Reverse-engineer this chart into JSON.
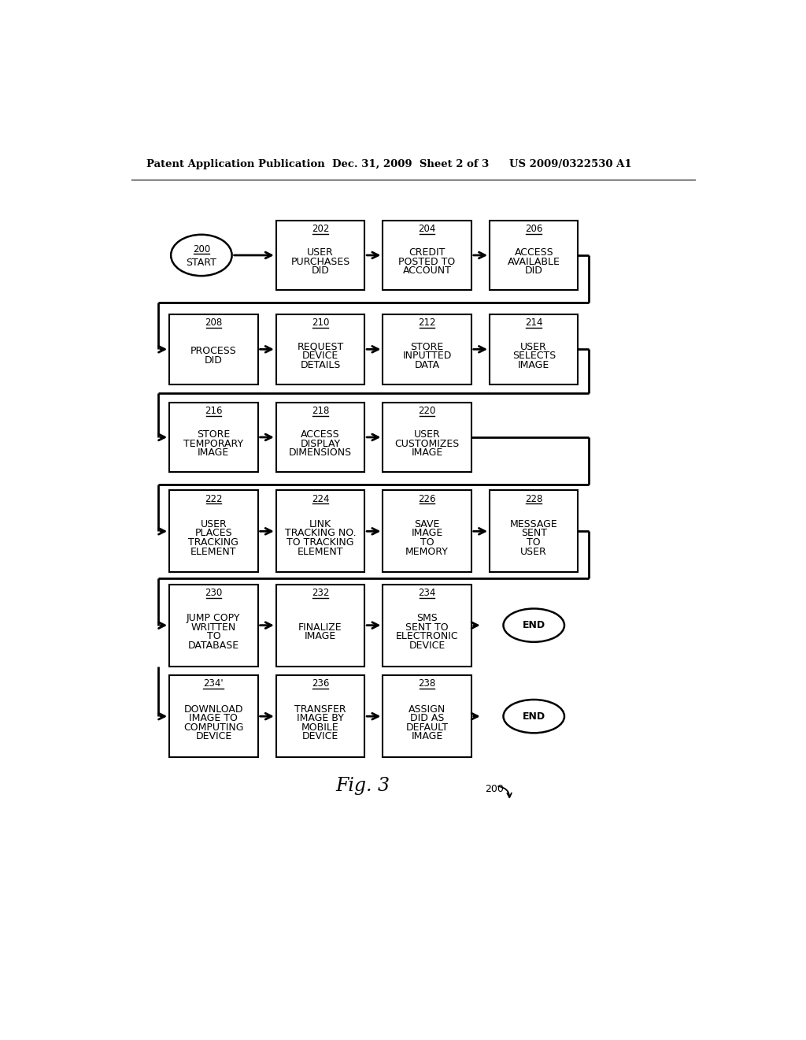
{
  "bg_color": "#ffffff",
  "header_left": "Patent Application Publication",
  "header_center": "Dec. 31, 2009  Sheet 2 of 3",
  "header_right": "US 2009/0322530 A1",
  "fig_label": "Fig. 3",
  "fig_note": "200",
  "nodes": {
    "200": {
      "label": "200\nSTART",
      "type": "oval"
    },
    "202": {
      "label": "202\nUSER\nPURCHASES\nDID",
      "type": "rect"
    },
    "204": {
      "label": "204\nCREDIT\nPOSTED TO\nACCOUNT",
      "type": "rect"
    },
    "206": {
      "label": "206\nACCESS\nAVAILABLE\nDID",
      "type": "rect"
    },
    "208": {
      "label": "208\nPROCESS\nDID",
      "type": "rect"
    },
    "210": {
      "label": "210\nREQUEST\nDEVICE\nDETAILS",
      "type": "rect"
    },
    "212": {
      "label": "212\nSTORE\nINPUTTED\nDATA",
      "type": "rect"
    },
    "214": {
      "label": "214\nUSER\nSELECTS\nIMAGE",
      "type": "rect"
    },
    "216": {
      "label": "216\nSTORE\nTEMPORARY\nIMAGE",
      "type": "rect"
    },
    "218": {
      "label": "218\nACCESS\nDISPLAY\nDIMENSIONS",
      "type": "rect"
    },
    "220": {
      "label": "220\nUSER\nCUSTOMIZES\nIMAGE",
      "type": "rect"
    },
    "222": {
      "label": "222\nUSER\nPLACES\nTRACKING\nELEMENT",
      "type": "rect"
    },
    "224": {
      "label": "224\nLINK\nTRACKING NO.\nTO TRACKING\nELEMENT",
      "type": "rect"
    },
    "226": {
      "label": "226\nSAVE\nIMAGE\nTO\nMEMORY",
      "type": "rect"
    },
    "228": {
      "label": "228\nMESSAGE\nSENT\nTO\nUSER",
      "type": "rect"
    },
    "230": {
      "label": "230\nJUMP COPY\nWRITTEN\nTO\nDATABASE",
      "type": "rect"
    },
    "232": {
      "label": "232\nFINALIZE\nIMAGE",
      "type": "rect"
    },
    "234": {
      "label": "234\nSMS\nSENT TO\nELECTRONIC\nDEVICE",
      "type": "rect"
    },
    "END1": {
      "label": "END",
      "type": "oval"
    },
    "234p": {
      "label": "234'\nDOWNLOAD\nIMAGE TO\nCOMPUTING\nDEVICE",
      "type": "rect"
    },
    "236": {
      "label": "236\nTRANSFER\nIMAGE BY\nMOBILE\nDEVICE",
      "type": "rect"
    },
    "238": {
      "label": "238\nASSIGN\nDID AS\nDEFAULT\nIMAGE",
      "type": "rect"
    },
    "END2": {
      "label": "END",
      "type": "oval"
    }
  }
}
